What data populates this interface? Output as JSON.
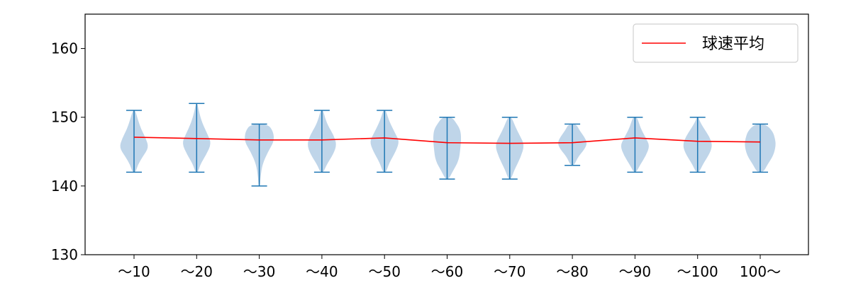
{
  "chart_data": {
    "type": "violin",
    "categories": [
      "～10",
      "～20",
      "～30",
      "～40",
      "～50",
      "～60",
      "～70",
      "～80",
      "～90",
      "～100",
      "100～"
    ],
    "ylim": [
      130,
      165
    ],
    "yticks": [
      130,
      140,
      150,
      160
    ],
    "grid": false,
    "legend": {
      "position": "top-right",
      "entries": [
        "球速平均"
      ]
    },
    "series": [
      {
        "name": "球速平均",
        "kind": "line",
        "color": "#ff0000",
        "values": [
          147.1,
          146.9,
          146.7,
          146.7,
          147.0,
          146.3,
          146.2,
          146.3,
          147.0,
          146.5,
          146.4
        ]
      }
    ],
    "violins": [
      {
        "min": 142,
        "max": 151,
        "profile": [
          [
            0,
            0.1
          ],
          [
            0.12,
            0.25
          ],
          [
            0.25,
            0.55
          ],
          [
            0.4,
            0.95
          ],
          [
            0.55,
            0.75
          ],
          [
            0.7,
            0.45
          ],
          [
            0.85,
            0.25
          ],
          [
            1,
            0.08
          ]
        ]
      },
      {
        "min": 142,
        "max": 152,
        "profile": [
          [
            0,
            0.08
          ],
          [
            0.12,
            0.25
          ],
          [
            0.25,
            0.6
          ],
          [
            0.42,
            0.95
          ],
          [
            0.55,
            0.7
          ],
          [
            0.72,
            0.35
          ],
          [
            0.88,
            0.15
          ],
          [
            1,
            0.05
          ]
        ]
      },
      {
        "min": 140,
        "max": 149,
        "profile": [
          [
            0,
            0.05
          ],
          [
            0.15,
            0.08
          ],
          [
            0.35,
            0.2
          ],
          [
            0.55,
            0.55
          ],
          [
            0.72,
            0.95
          ],
          [
            0.88,
            0.9
          ],
          [
            1,
            0.55
          ]
        ]
      },
      {
        "min": 142,
        "max": 151,
        "profile": [
          [
            0,
            0.1
          ],
          [
            0.12,
            0.3
          ],
          [
            0.3,
            0.75
          ],
          [
            0.45,
            0.95
          ],
          [
            0.6,
            0.75
          ],
          [
            0.75,
            0.4
          ],
          [
            0.88,
            0.2
          ],
          [
            1,
            0.08
          ]
        ]
      },
      {
        "min": 142,
        "max": 151,
        "profile": [
          [
            0,
            0.1
          ],
          [
            0.15,
            0.3
          ],
          [
            0.35,
            0.75
          ],
          [
            0.5,
            0.95
          ],
          [
            0.62,
            0.7
          ],
          [
            0.8,
            0.35
          ],
          [
            0.9,
            0.2
          ],
          [
            1,
            0.08
          ]
        ]
      },
      {
        "min": 141,
        "max": 150,
        "profile": [
          [
            0,
            0.1
          ],
          [
            0.12,
            0.35
          ],
          [
            0.3,
            0.75
          ],
          [
            0.5,
            0.85
          ],
          [
            0.65,
            0.9
          ],
          [
            0.8,
            0.85
          ],
          [
            0.92,
            0.55
          ],
          [
            1,
            0.3
          ]
        ]
      },
      {
        "min": 141,
        "max": 150,
        "profile": [
          [
            0,
            0.08
          ],
          [
            0.15,
            0.3
          ],
          [
            0.35,
            0.7
          ],
          [
            0.55,
            0.95
          ],
          [
            0.7,
            0.65
          ],
          [
            0.85,
            0.35
          ],
          [
            1,
            0.12
          ]
        ]
      },
      {
        "min": 143,
        "max": 149,
        "profile": [
          [
            0,
            0.12
          ],
          [
            0.2,
            0.35
          ],
          [
            0.4,
            0.8
          ],
          [
            0.55,
            0.95
          ],
          [
            0.7,
            0.75
          ],
          [
            0.85,
            0.45
          ],
          [
            1,
            0.25
          ]
        ]
      },
      {
        "min": 142,
        "max": 150,
        "profile": [
          [
            0,
            0.08
          ],
          [
            0.12,
            0.3
          ],
          [
            0.3,
            0.7
          ],
          [
            0.48,
            0.95
          ],
          [
            0.62,
            0.7
          ],
          [
            0.78,
            0.4
          ],
          [
            0.9,
            0.25
          ],
          [
            1,
            0.12
          ]
        ]
      },
      {
        "min": 142,
        "max": 150,
        "profile": [
          [
            0,
            0.1
          ],
          [
            0.15,
            0.35
          ],
          [
            0.35,
            0.8
          ],
          [
            0.5,
            0.95
          ],
          [
            0.65,
            0.75
          ],
          [
            0.8,
            0.4
          ],
          [
            0.92,
            0.15
          ],
          [
            1,
            0.05
          ]
        ]
      },
      {
        "min": 142,
        "max": 149,
        "profile": [
          [
            0,
            0.2
          ],
          [
            0.15,
            0.45
          ],
          [
            0.35,
            0.85
          ],
          [
            0.55,
            1.0
          ],
          [
            0.7,
            0.95
          ],
          [
            0.85,
            0.8
          ],
          [
            1,
            0.35
          ]
        ]
      }
    ],
    "colors": {
      "violin_fill": "#bcd3e8",
      "violin_line": "#1f77b4",
      "mean_line": "#ff0000",
      "axes": "#000000"
    }
  }
}
